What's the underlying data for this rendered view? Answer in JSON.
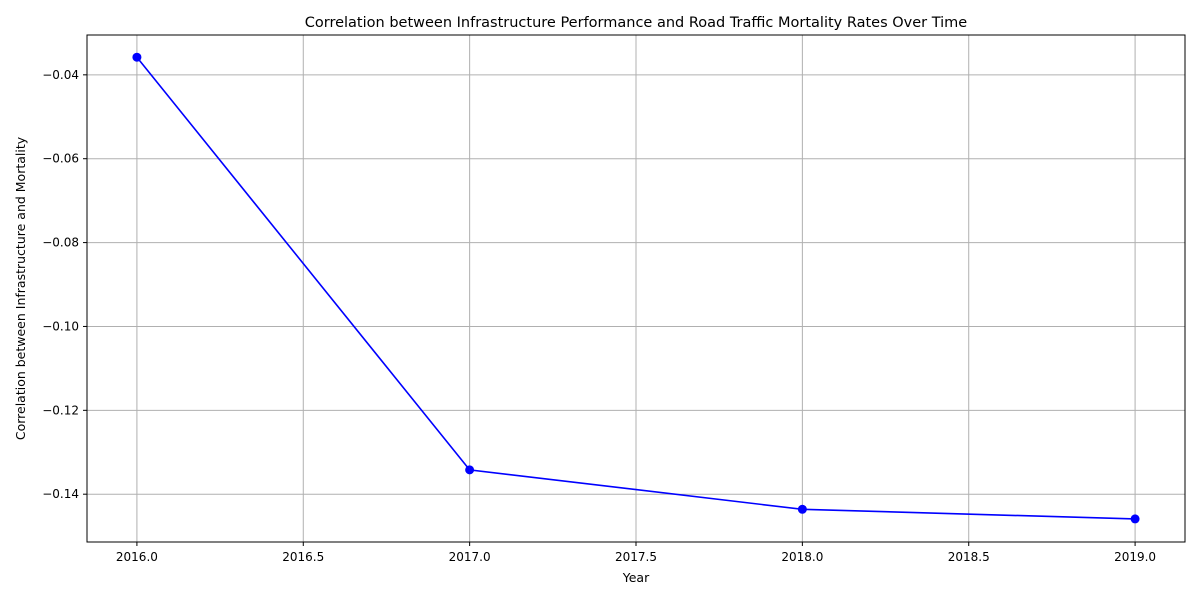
{
  "chart_data": {
    "type": "line",
    "title": "Correlation between Infrastructure Performance and Road Traffic Mortality Rates Over Time",
    "xlabel": "Year",
    "ylabel": "Correlation between Infrastructure and Mortality",
    "xlim": [
      2015.85,
      2019.15
    ],
    "ylim": [
      -0.1514,
      -0.0305
    ],
    "x_ticks": [
      2016.0,
      2016.5,
      2017.0,
      2017.5,
      2018.0,
      2018.5,
      2019.0
    ],
    "x_tick_labels": [
      "2016.0",
      "2016.5",
      "2017.0",
      "2017.5",
      "2018.0",
      "2018.5",
      "2019.0"
    ],
    "y_ticks": [
      -0.04,
      -0.06,
      -0.08,
      -0.1,
      -0.12,
      -0.14
    ],
    "y_tick_labels": [
      "−0.04",
      "−0.06",
      "−0.08",
      "−0.10",
      "−0.12",
      "−0.14"
    ],
    "grid": true,
    "series": [
      {
        "x": [
          2016,
          2017,
          2018,
          2019
        ],
        "values": [
          -0.0358,
          -0.1342,
          -0.1436,
          -0.1459
        ],
        "color": "#0000ff",
        "marker": "circle"
      }
    ]
  }
}
